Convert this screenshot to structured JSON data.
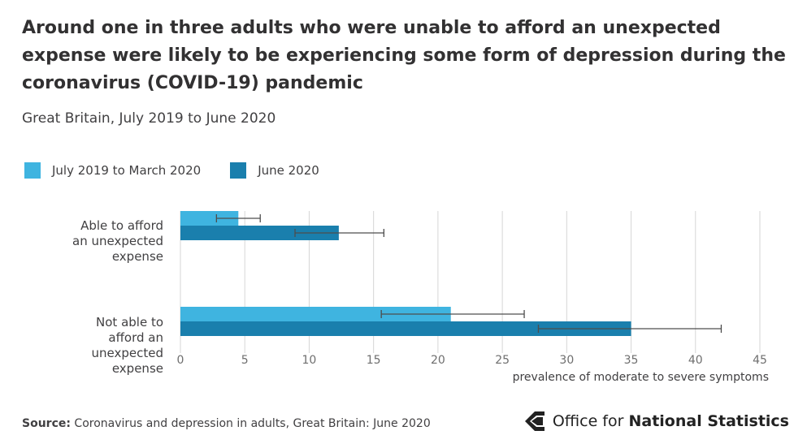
{
  "title": "Around one in three adults who were unable to afford an unexpected expense were likely to be experiencing some form of depression during the coronavirus (COVID-19) pandemic",
  "subtitle": "Great Britain, July 2019 to June 2020",
  "source_label": "Source:",
  "source_text": "Coronavirus and depression in adults, Great Britain: June 2020",
  "logo": {
    "part1": "Office for ",
    "part2": "National Statistics"
  },
  "colors": {
    "series1": "#3fb4e0",
    "series2": "#1a7fad",
    "grid": "#d6d6d6",
    "errorbar": "#4d4d4d"
  },
  "chart_data": {
    "type": "bar",
    "orientation": "horizontal",
    "categories": [
      [
        "Able to afford",
        "an unexpected",
        "expense"
      ],
      [
        "Not able to",
        "afford an",
        "unexpected",
        "expense"
      ]
    ],
    "series": [
      {
        "name": "July 2019 to March 2020",
        "values": [
          4.5,
          21.0
        ],
        "error_low": [
          2.8,
          15.6
        ],
        "error_high": [
          6.2,
          26.7
        ]
      },
      {
        "name": "June 2020",
        "values": [
          12.3,
          35.0
        ],
        "error_low": [
          8.9,
          27.8
        ],
        "error_high": [
          15.8,
          42.0
        ]
      }
    ],
    "xlim": [
      0,
      45
    ],
    "xticks": [
      0,
      5,
      10,
      15,
      20,
      25,
      30,
      35,
      40,
      45
    ],
    "xlabel": "prevalence of moderate to severe symptoms",
    "grid": true,
    "legend_position": "top"
  }
}
